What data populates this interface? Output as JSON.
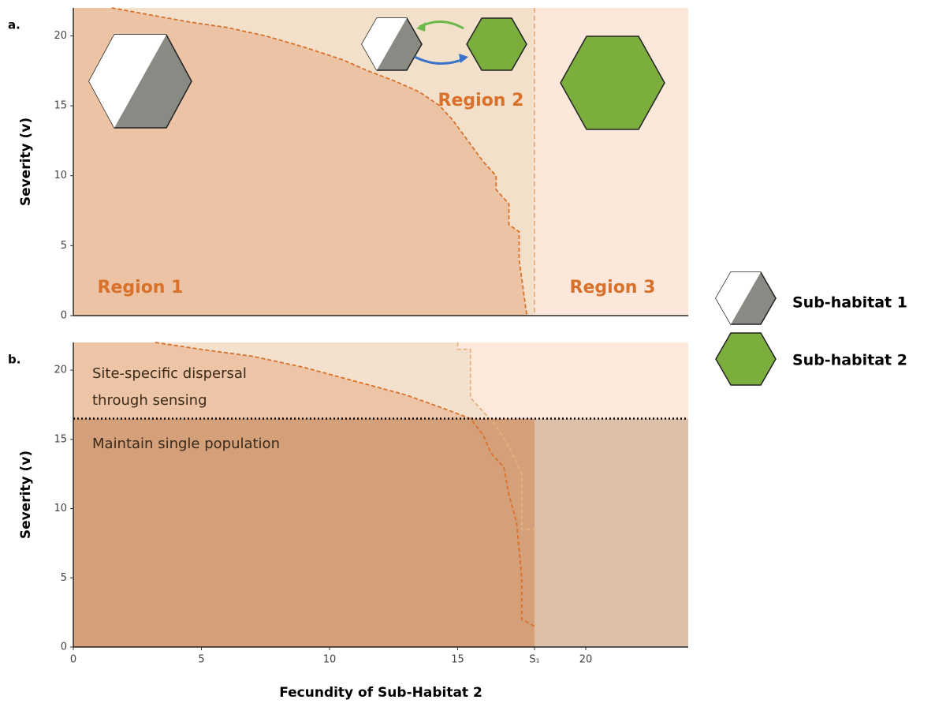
{
  "chart_data": [
    {
      "type": "line",
      "label": "a.",
      "ylabel": "Severity (v)",
      "xlim": [
        0,
        24
      ],
      "ylim": [
        0,
        22
      ],
      "yticks": [
        0,
        5,
        10,
        15,
        20
      ],
      "background": "#fce8da",
      "region_fill": "#f3e0cb",
      "boundary_x": 18,
      "boundary_color": "#e3a46f",
      "annotations": [
        "Region 1",
        "Region 2",
        "Region 3"
      ],
      "series": [
        {
          "color": "#d9712a",
          "fill": "#ecc3a4",
          "x": [
            1.5,
            3,
            4.5,
            6,
            7.5,
            9,
            10.5,
            11.5,
            12.5,
            13.5,
            14.3,
            14.8,
            15.2,
            15.6,
            16,
            16.5,
            16.5,
            17,
            17,
            17.4,
            17.4,
            17.7
          ],
          "values": [
            22,
            21.5,
            21,
            20.6,
            20,
            19.2,
            18.3,
            17.5,
            16.8,
            16,
            15,
            14,
            13,
            12,
            11,
            10,
            9,
            8,
            6.5,
            6,
            4,
            0
          ]
        }
      ]
    },
    {
      "type": "line",
      "label": "b.",
      "ylabel": "Severity (v)",
      "xlabel": "Fecundity of Sub-Habitat 2",
      "xlim": [
        0,
        24
      ],
      "ylim": [
        0,
        22
      ],
      "xticks": [
        0,
        5,
        10,
        15,
        {
          "value": 18,
          "label": "S₁"
        },
        20
      ],
      "yticks": [
        0,
        5,
        10,
        15,
        20
      ],
      "background": "#fde9dc",
      "threshold": 16.5,
      "below_colors": [
        "#d3a07a",
        "#dcc0aa"
      ],
      "boundary_x": 18,
      "annotations": [
        "Site-specific dispersal",
        "through sensing",
        "Maintain single population"
      ],
      "series": [
        {
          "color": "#e3b07f",
          "fill": "#f4e1cd",
          "x": [
            15,
            15,
            15.5,
            15.5,
            16,
            16.5,
            17,
            17.5,
            17.5,
            18,
            18
          ],
          "values": [
            22,
            21.5,
            21.5,
            18,
            17,
            16,
            14.5,
            12.5,
            8.5,
            8.5,
            0
          ]
        },
        {
          "color": "#d9712a",
          "fill": "#edc4a5",
          "x": [
            3.2,
            5,
            7,
            9,
            11,
            13,
            14.5,
            15.5,
            16,
            16.3,
            16.8,
            17,
            17.3,
            17.5,
            17.5,
            18
          ],
          "values": [
            22,
            21.5,
            21,
            20.2,
            19.2,
            18.2,
            17.2,
            16.5,
            15.3,
            14,
            13,
            11,
            9,
            5,
            2,
            1.5
          ]
        }
      ]
    }
  ],
  "legend": [
    "Sub-habitat 1",
    "Sub-habitat 2"
  ]
}
